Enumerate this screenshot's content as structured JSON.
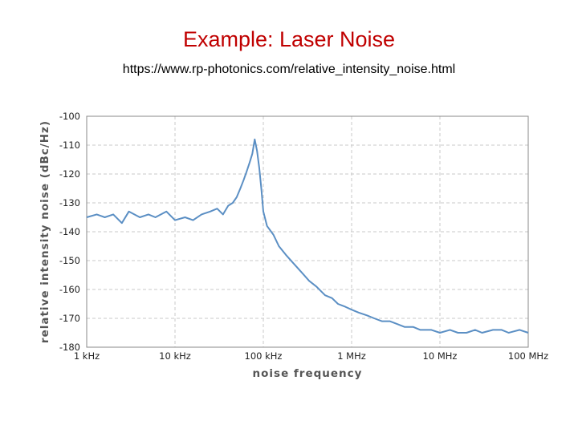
{
  "slide": {
    "title": "Example: Laser Noise",
    "url": "https://www.rp-photonics.com/relative_intensity_noise.html"
  },
  "chart_data": {
    "type": "line",
    "title": "",
    "xlabel": "noise frequency",
    "ylabel": "relative intensity noise (dBc/Hz)",
    "x_scale": "log",
    "xlim": [
      1000,
      100000000
    ],
    "ylim": [
      -180,
      -100
    ],
    "x_ticks": [
      {
        "value": 1000,
        "label": "1 kHz"
      },
      {
        "value": 10000,
        "label": "10 kHz"
      },
      {
        "value": 100000,
        "label": "100 kHz"
      },
      {
        "value": 1000000,
        "label": "1 MHz"
      },
      {
        "value": 10000000,
        "label": "10 MHz"
      },
      {
        "value": 100000000,
        "label": "100 MHz"
      }
    ],
    "y_ticks": [
      -100,
      -110,
      -120,
      -130,
      -140,
      -150,
      -160,
      -170,
      -180
    ],
    "grid": true,
    "legend": "none",
    "colors": {
      "line": "#5b8fc4",
      "grid": "#c8c8c8",
      "frame": "#888888"
    },
    "series": [
      {
        "x": [
          1000,
          1300,
          1600,
          2000,
          2500,
          3000,
          4000,
          5000,
          6000,
          8000,
          10000,
          13000,
          16000,
          20000,
          25000,
          30000,
          35000,
          40000,
          45000,
          50000,
          55000,
          60000,
          65000,
          70000,
          75000,
          80000,
          85000,
          90000,
          95000,
          100000,
          110000,
          130000,
          150000,
          180000,
          220000,
          270000,
          330000,
          400000,
          500000,
          600000,
          700000,
          850000,
          1000000,
          1200000,
          1500000,
          1800000,
          2200000,
          2700000,
          3300000,
          4000000,
          5000000,
          6000000,
          8000000,
          10000000,
          13000000,
          16000000,
          20000000,
          25000000,
          30000000,
          40000000,
          50000000,
          60000000,
          80000000,
          100000000
        ],
        "y": [
          -135,
          -134,
          -135,
          -134,
          -137,
          -133,
          -135,
          -134,
          -135,
          -133,
          -136,
          -135,
          -136,
          -134,
          -133,
          -132,
          -134,
          -131,
          -130,
          -128,
          -125,
          -122,
          -119,
          -116,
          -113,
          -108,
          -112,
          -118,
          -125,
          -133,
          -138,
          -141,
          -145,
          -148,
          -151,
          -154,
          -157,
          -159,
          -162,
          -163,
          -165,
          -166,
          -167,
          -168,
          -169,
          -170,
          -171,
          -171,
          -172,
          -173,
          -173,
          -174,
          -174,
          -175,
          -174,
          -175,
          -175,
          -174,
          -175,
          -174,
          -174,
          -175,
          -174,
          -175
        ]
      }
    ]
  }
}
